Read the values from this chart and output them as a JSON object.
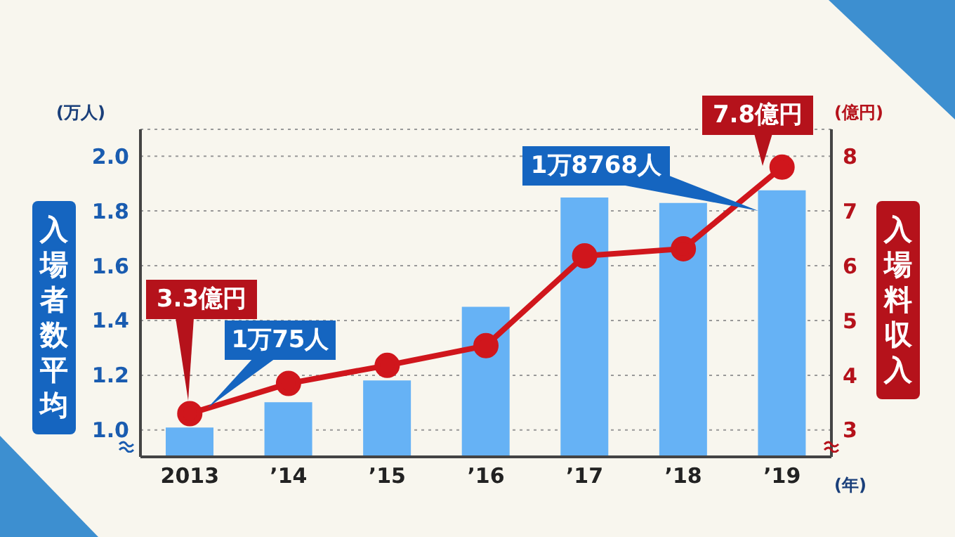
{
  "chart_data": {
    "type": "bar",
    "ylabel": "入場者数平均",
    "y2label": "入場料収入",
    "categories": [
      "2013",
      "’14",
      "’15",
      "’16",
      "’17",
      "’18",
      "’19"
    ],
    "series": [
      {
        "color": "#66b2f5",
        "values": [
          1.0075,
          1.1,
          1.18,
          1.45,
          1.85,
          1.83,
          1.8768
        ]
      },
      {
        "type": "line",
        "axis": "y2",
        "color": "#d0161c",
        "values": [
          3.3,
          3.85,
          4.18,
          4.54,
          6.18,
          6.31,
          7.8
        ]
      }
    ],
    "ylim": [
      0.9,
      2.1
    ],
    "yticks": [
      {
        "value": 1,
        "label": "1.0"
      },
      1.2,
      1.4,
      1.6,
      1.8,
      {
        "value": 2,
        "label": "2.0"
      }
    ],
    "y2lim": [
      2.51,
      8.49
    ],
    "y2ticks": [
      3,
      4,
      5,
      6,
      7,
      8
    ],
    "grid": "y",
    "marker": "circle",
    "line_style": "solid",
    "annotations": [
      "(万人)",
      "(億円)",
      "(年)",
      "3.3億円",
      "1万75人",
      "1万8768人",
      "7.8億円"
    ]
  }
}
